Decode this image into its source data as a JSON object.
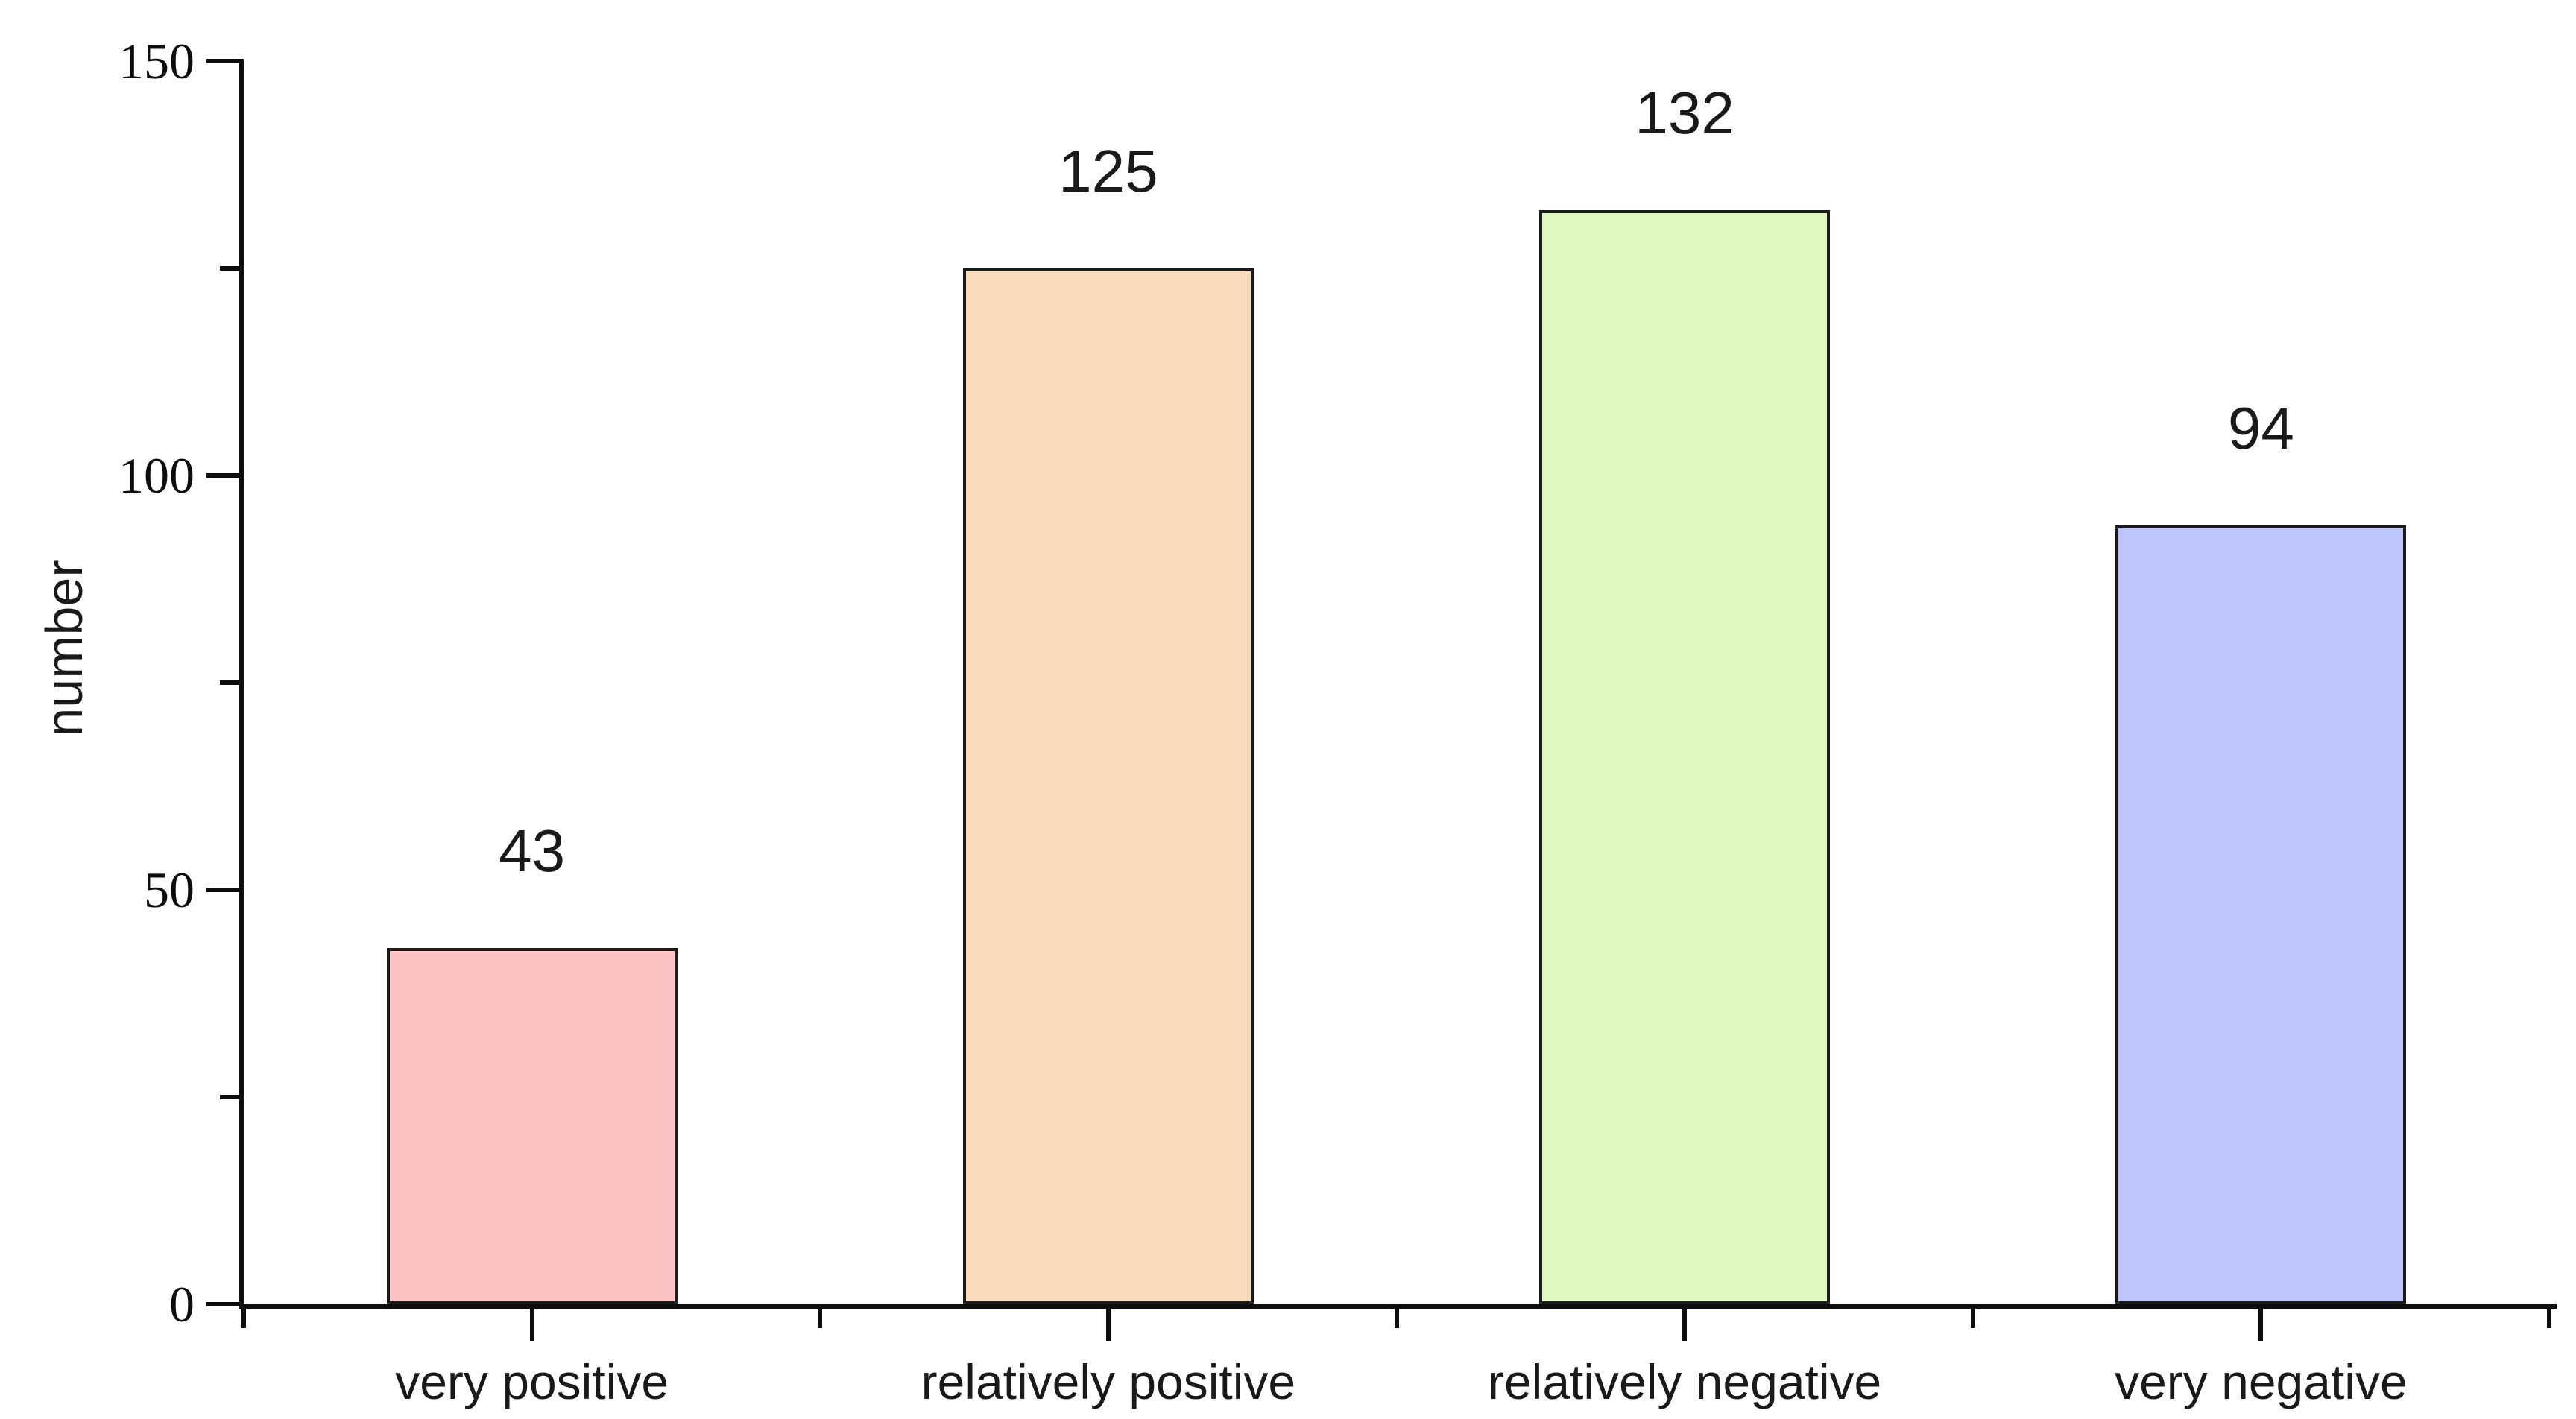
{
  "figure": {
    "background_color": "#ffffff",
    "axis_color": "#0d0d0d",
    "text_color": "#1a1a1a"
  },
  "chart_data": {
    "type": "bar",
    "categories": [
      "very positive",
      "relatively positive",
      "relatively negative",
      "very negative"
    ],
    "values": [
      43,
      125,
      132,
      94
    ],
    "value_labels": [
      "43",
      "125",
      "132",
      "94"
    ],
    "bar_colors": [
      "#fcc3c2",
      "#fadcbb",
      "#e0f7c2",
      "#bcc5fc"
    ],
    "bar_edge_color": "#1b1b1b",
    "xlabel": "",
    "ylabel": "number",
    "ylim": [
      0,
      150
    ],
    "yticks": [
      0,
      50,
      100,
      150
    ],
    "ytick_labels": [
      "0",
      "50",
      "100",
      "150"
    ],
    "minor_yticks": [
      25,
      75,
      125
    ],
    "grid": false,
    "legend_position": "none",
    "bar_value_labels_shown": true
  }
}
